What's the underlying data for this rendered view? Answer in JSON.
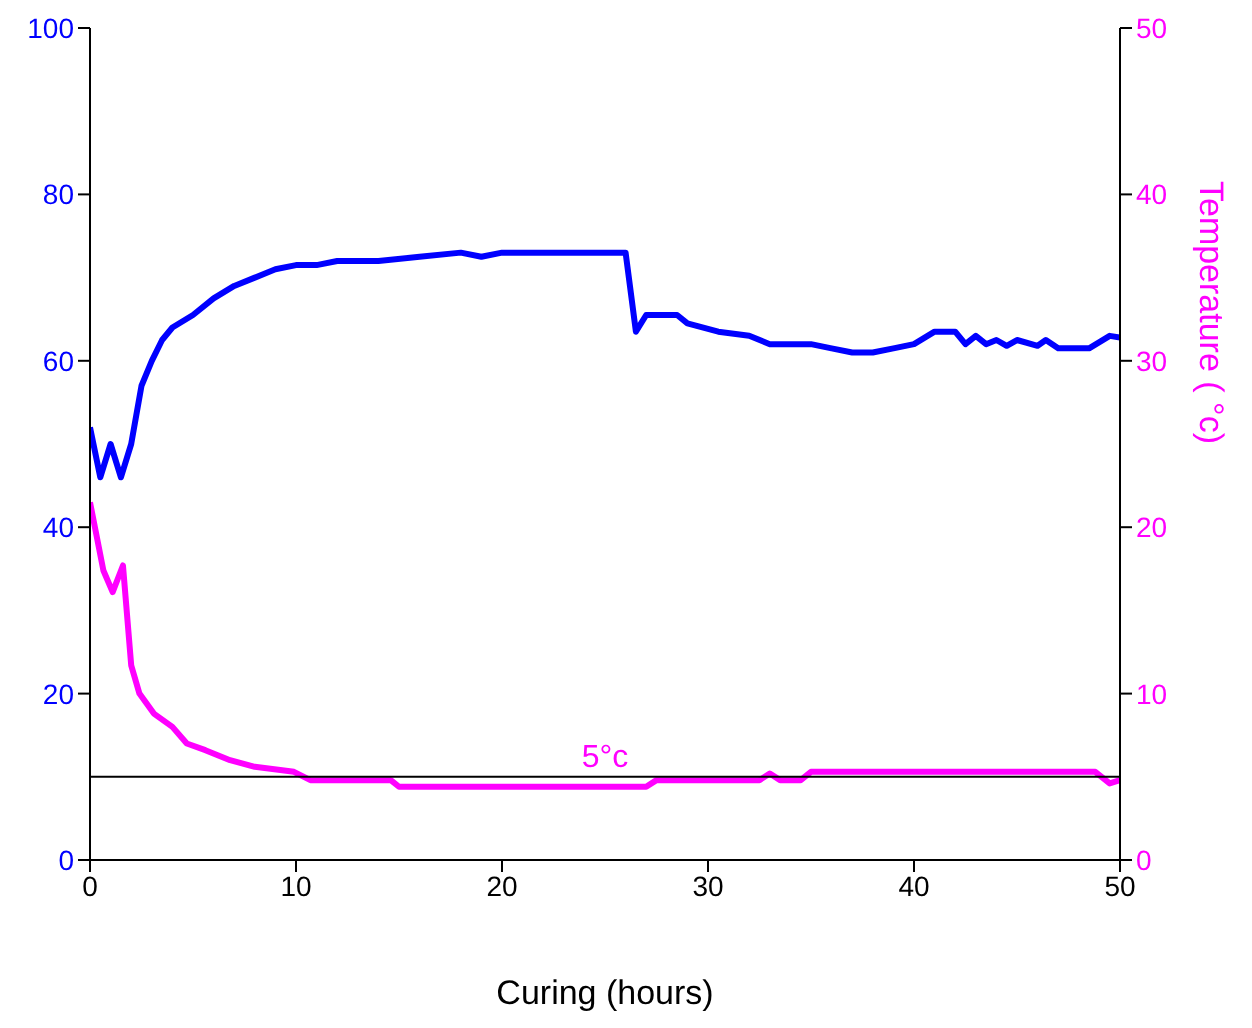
{
  "chart_data": {
    "type": "line",
    "xlabel": "Curing (hours)",
    "y2label": "Temperature ( °c)",
    "xlim": [
      0,
      50
    ],
    "xticks": [
      0,
      10,
      20,
      30,
      40,
      50
    ],
    "ylim": [
      0,
      100
    ],
    "yticks": [
      0,
      20,
      40,
      60,
      80,
      100
    ],
    "y2lim": [
      0,
      50
    ],
    "y2ticks": [
      0,
      10,
      20,
      30,
      40,
      50
    ],
    "grid": false,
    "legend": false,
    "marker": "none",
    "line_style": "solid",
    "series": [
      {
        "color": "#0000ff",
        "x": [
          0,
          0.5,
          1,
          1.5,
          2,
          2.5,
          3,
          3.5,
          4,
          5,
          6,
          7,
          8,
          9,
          10,
          11,
          12,
          14,
          16,
          18,
          19,
          20,
          26,
          26.5,
          27,
          28.5,
          29,
          30.5,
          32,
          33,
          35,
          36,
          37,
          38,
          39,
          40,
          41,
          42,
          42.5,
          43,
          43.5,
          44,
          44.5,
          45,
          46,
          46.4,
          47,
          48.5,
          49.5,
          50
        ],
        "values": [
          52,
          46,
          50,
          46,
          50,
          57,
          60,
          62.5,
          64,
          65.5,
          67.5,
          69,
          70,
          71,
          71.5,
          71.5,
          72,
          72,
          72.5,
          73,
          72.5,
          73,
          73,
          63.5,
          65.5,
          65.5,
          64.5,
          63.5,
          63,
          62,
          62,
          61.5,
          61,
          61,
          61.5,
          62,
          63.5,
          63.5,
          62,
          63,
          62,
          62.5,
          61.8,
          62.5,
          61.8,
          62.5,
          61.5,
          61.5,
          63,
          62.8
        ]
      },
      {
        "color": "#ff00ff",
        "axis": "y2",
        "x": [
          0,
          0.65,
          1.1,
          1.6,
          2,
          2.4,
          3.1,
          4,
          4.7,
          5.6,
          6.8,
          8,
          9.9,
          10.7,
          14.6,
          15,
          27,
          27.5,
          32.5,
          33,
          33.5,
          34.5,
          35,
          48.8,
          49.5,
          50
        ],
        "values": [
          21.5,
          17.4,
          16.1,
          17.7,
          11.7,
          10,
          8.8,
          8,
          7,
          6.6,
          6,
          5.6,
          5.3,
          4.8,
          4.8,
          4.4,
          4.4,
          4.8,
          4.8,
          5.2,
          4.8,
          4.8,
          5.3,
          5.3,
          4.6,
          4.8
        ]
      }
    ],
    "ref_lines": [
      {
        "axis": "y2",
        "value": 5,
        "label": "5°c",
        "color": "#000000"
      }
    ]
  }
}
